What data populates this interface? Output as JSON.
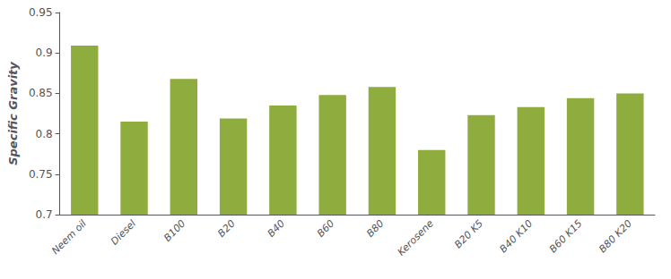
{
  "chart_data": {
    "type": "bar",
    "categories": [
      "Neem oil",
      "Diesel",
      "B100",
      "B20",
      "B40",
      "B60",
      "B80",
      "Kerosene",
      "B20 K5",
      "B40 K10",
      "B60 K15",
      "B80 K20"
    ],
    "values": [
      0.909,
      0.815,
      0.868,
      0.819,
      0.835,
      0.848,
      0.858,
      0.78,
      0.823,
      0.833,
      0.844,
      0.85
    ],
    "color": "#8fad3f",
    "ylabel": "Specific Gravity",
    "ylim": [
      0.7,
      0.95
    ],
    "yticks": [
      0.7,
      0.75,
      0.8,
      0.85,
      0.9,
      0.95
    ],
    "grid": false
  }
}
